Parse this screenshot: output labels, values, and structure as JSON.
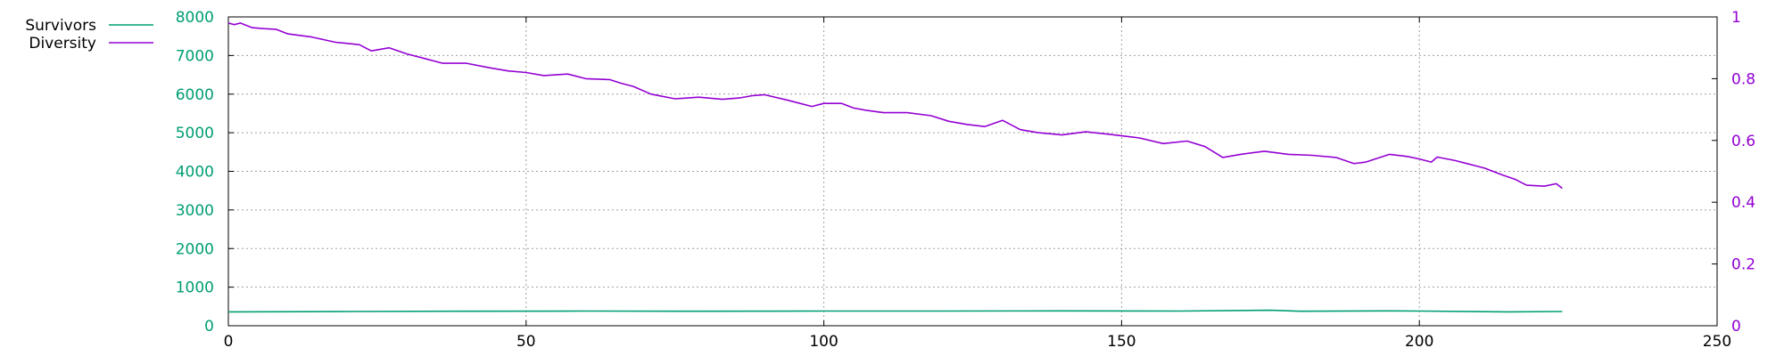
{
  "chart_data": {
    "type": "line",
    "title": "",
    "xlabel": "",
    "ylabel": "",
    "xlim": [
      0,
      250
    ],
    "ylim_left": [
      0,
      8000
    ],
    "ylim_right": [
      0,
      1
    ],
    "x_ticks": [
      "0",
      "50",
      "100",
      "150",
      "200",
      "250"
    ],
    "y_left_ticks": [
      "0",
      "1000",
      "2000",
      "3000",
      "4000",
      "5000",
      "6000",
      "7000",
      "8000"
    ],
    "y_right_ticks": [
      "0",
      "0.2",
      "0.4",
      "0.6",
      "0.8",
      "1"
    ],
    "grid": true,
    "legend_position": "top-left",
    "series": [
      {
        "name": "Survivors",
        "axis": "left",
        "color": "#009e73",
        "points": [
          [
            0,
            360
          ],
          [
            20,
            370
          ],
          [
            40,
            375
          ],
          [
            60,
            380
          ],
          [
            80,
            375
          ],
          [
            100,
            380
          ],
          [
            120,
            380
          ],
          [
            140,
            385
          ],
          [
            160,
            380
          ],
          [
            175,
            400
          ],
          [
            180,
            375
          ],
          [
            195,
            385
          ],
          [
            200,
            380
          ],
          [
            215,
            360
          ],
          [
            224,
            370
          ]
        ]
      },
      {
        "name": "Diversity",
        "axis": "right",
        "color": "#9400d3",
        "points": [
          [
            0,
            0.98
          ],
          [
            1,
            0.975
          ],
          [
            2,
            0.98
          ],
          [
            4,
            0.965
          ],
          [
            6,
            0.962
          ],
          [
            8,
            0.96
          ],
          [
            10,
            0.945
          ],
          [
            14,
            0.935
          ],
          [
            18,
            0.918
          ],
          [
            22,
            0.91
          ],
          [
            24,
            0.89
          ],
          [
            27,
            0.9
          ],
          [
            30,
            0.88
          ],
          [
            33,
            0.865
          ],
          [
            36,
            0.85
          ],
          [
            40,
            0.85
          ],
          [
            44,
            0.835
          ],
          [
            47,
            0.825
          ],
          [
            50,
            0.82
          ],
          [
            53,
            0.81
          ],
          [
            57,
            0.815
          ],
          [
            60,
            0.8
          ],
          [
            64,
            0.797
          ],
          [
            66,
            0.785
          ],
          [
            68,
            0.775
          ],
          [
            71,
            0.75
          ],
          [
            75,
            0.735
          ],
          [
            79,
            0.74
          ],
          [
            83,
            0.733
          ],
          [
            86,
            0.738
          ],
          [
            88,
            0.745
          ],
          [
            90,
            0.748
          ],
          [
            94,
            0.73
          ],
          [
            98,
            0.71
          ],
          [
            100,
            0.72
          ],
          [
            103,
            0.72
          ],
          [
            105,
            0.705
          ],
          [
            107,
            0.698
          ],
          [
            110,
            0.69
          ],
          [
            114,
            0.69
          ],
          [
            118,
            0.68
          ],
          [
            121,
            0.662
          ],
          [
            124,
            0.652
          ],
          [
            127,
            0.645
          ],
          [
            130,
            0.665
          ],
          [
            133,
            0.635
          ],
          [
            136,
            0.625
          ],
          [
            140,
            0.618
          ],
          [
            144,
            0.628
          ],
          [
            148,
            0.62
          ],
          [
            150,
            0.615
          ],
          [
            153,
            0.608
          ],
          [
            157,
            0.59
          ],
          [
            161,
            0.598
          ],
          [
            164,
            0.58
          ],
          [
            167,
            0.545
          ],
          [
            170,
            0.555
          ],
          [
            174,
            0.565
          ],
          [
            178,
            0.555
          ],
          [
            182,
            0.552
          ],
          [
            186,
            0.545
          ],
          [
            189,
            0.525
          ],
          [
            191,
            0.53
          ],
          [
            195,
            0.555
          ],
          [
            198,
            0.548
          ],
          [
            200,
            0.54
          ],
          [
            202,
            0.53
          ],
          [
            203,
            0.546
          ],
          [
            206,
            0.535
          ],
          [
            208,
            0.525
          ],
          [
            211,
            0.51
          ],
          [
            214,
            0.488
          ],
          [
            216,
            0.475
          ],
          [
            218,
            0.455
          ],
          [
            221,
            0.452
          ],
          [
            223,
            0.46
          ],
          [
            224,
            0.445
          ]
        ]
      }
    ]
  }
}
